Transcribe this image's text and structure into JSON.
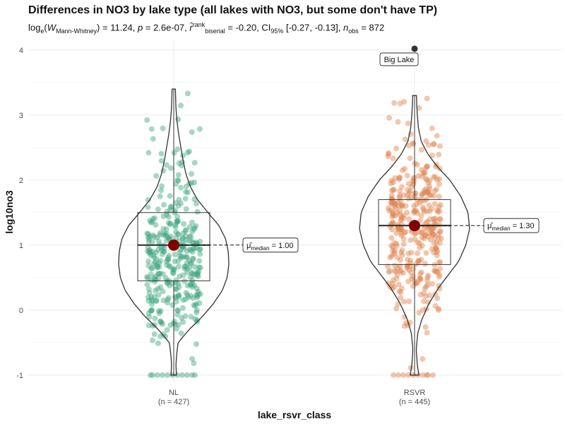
{
  "title": "Differences in NO3 by lake type (all lakes with NO3, but some don't have TP)",
  "subtitle": {
    "log_prefix": "log",
    "log_base": "e",
    "stat_symbol": "W",
    "stat_sub": "Mann-Whitney",
    "stat_value": " = 11.24, ",
    "p_label": "p",
    "p_value": " = 2.6e-07, ",
    "r_symbol": "r̂",
    "r_sup": "rank",
    "r_sub": "biserial",
    "r_value": " = -0.20, CI",
    "ci_sub": "95%",
    "ci_value": " [-0.27, -0.13], ",
    "n_label": "n",
    "n_sub": "obs",
    "n_value": " = 872"
  },
  "chart_data": {
    "type": "violin",
    "xlabel": "lake_rsvr_class",
    "ylabel": "log10no3",
    "ylim": [
      -1.1,
      4.15
    ],
    "yticks": [
      -1,
      0,
      1,
      2,
      3,
      4
    ],
    "grid": true,
    "groups": [
      {
        "name": "NL",
        "count_label": "(n = 427)",
        "color": "#3fa37f",
        "n": 427,
        "box": {
          "q1": 0.45,
          "median": 1.0,
          "q3": 1.5,
          "whisker_low": -1.0,
          "whisker_high": 3.4
        },
        "median": 1.0,
        "median_label_symbol": "μ̂",
        "median_label_sub": "median",
        "median_label_value": " = 1.00",
        "violin_density": [
          [
            -1.0,
            0.05
          ],
          [
            -0.85,
            0.04
          ],
          [
            -0.7,
            0.05
          ],
          [
            -0.5,
            0.08
          ],
          [
            -0.3,
            0.28
          ],
          [
            -0.1,
            0.52
          ],
          [
            0.1,
            0.72
          ],
          [
            0.3,
            0.88
          ],
          [
            0.5,
            0.97
          ],
          [
            0.7,
            1.0
          ],
          [
            0.9,
            0.99
          ],
          [
            1.1,
            0.94
          ],
          [
            1.3,
            0.82
          ],
          [
            1.5,
            0.62
          ],
          [
            1.7,
            0.43
          ],
          [
            1.9,
            0.3
          ],
          [
            2.1,
            0.22
          ],
          [
            2.3,
            0.17
          ],
          [
            2.5,
            0.13
          ],
          [
            2.7,
            0.09
          ],
          [
            2.9,
            0.06
          ],
          [
            3.1,
            0.04
          ],
          [
            3.4,
            0.03
          ]
        ]
      },
      {
        "name": "RSVR",
        "count_label": "(n = 445)",
        "color": "#e0824e",
        "n": 445,
        "box": {
          "q1": 0.7,
          "median": 1.3,
          "q3": 1.7,
          "whisker_low": -1.0,
          "whisker_high": 3.3
        },
        "median": 1.3,
        "median_label_symbol": "μ̂",
        "median_label_sub": "median",
        "median_label_value": " = 1.30",
        "violin_density": [
          [
            -1.0,
            0.08
          ],
          [
            -0.85,
            0.05
          ],
          [
            -0.6,
            0.03
          ],
          [
            -0.35,
            0.06
          ],
          [
            -0.15,
            0.13
          ],
          [
            0.1,
            0.26
          ],
          [
            0.35,
            0.44
          ],
          [
            0.55,
            0.62
          ],
          [
            0.75,
            0.8
          ],
          [
            1.0,
            0.93
          ],
          [
            1.25,
            1.0
          ],
          [
            1.5,
            0.97
          ],
          [
            1.75,
            0.84
          ],
          [
            2.0,
            0.64
          ],
          [
            2.2,
            0.42
          ],
          [
            2.4,
            0.24
          ],
          [
            2.6,
            0.12
          ],
          [
            2.8,
            0.07
          ],
          [
            3.0,
            0.05
          ],
          [
            3.15,
            0.04
          ],
          [
            3.3,
            0.035
          ]
        ],
        "outlier": {
          "y": 4.02,
          "label": "Big Lake"
        }
      }
    ]
  },
  "colors": {
    "median_point": "#800000",
    "grid": "#ebebeb",
    "outline": "#333333"
  }
}
